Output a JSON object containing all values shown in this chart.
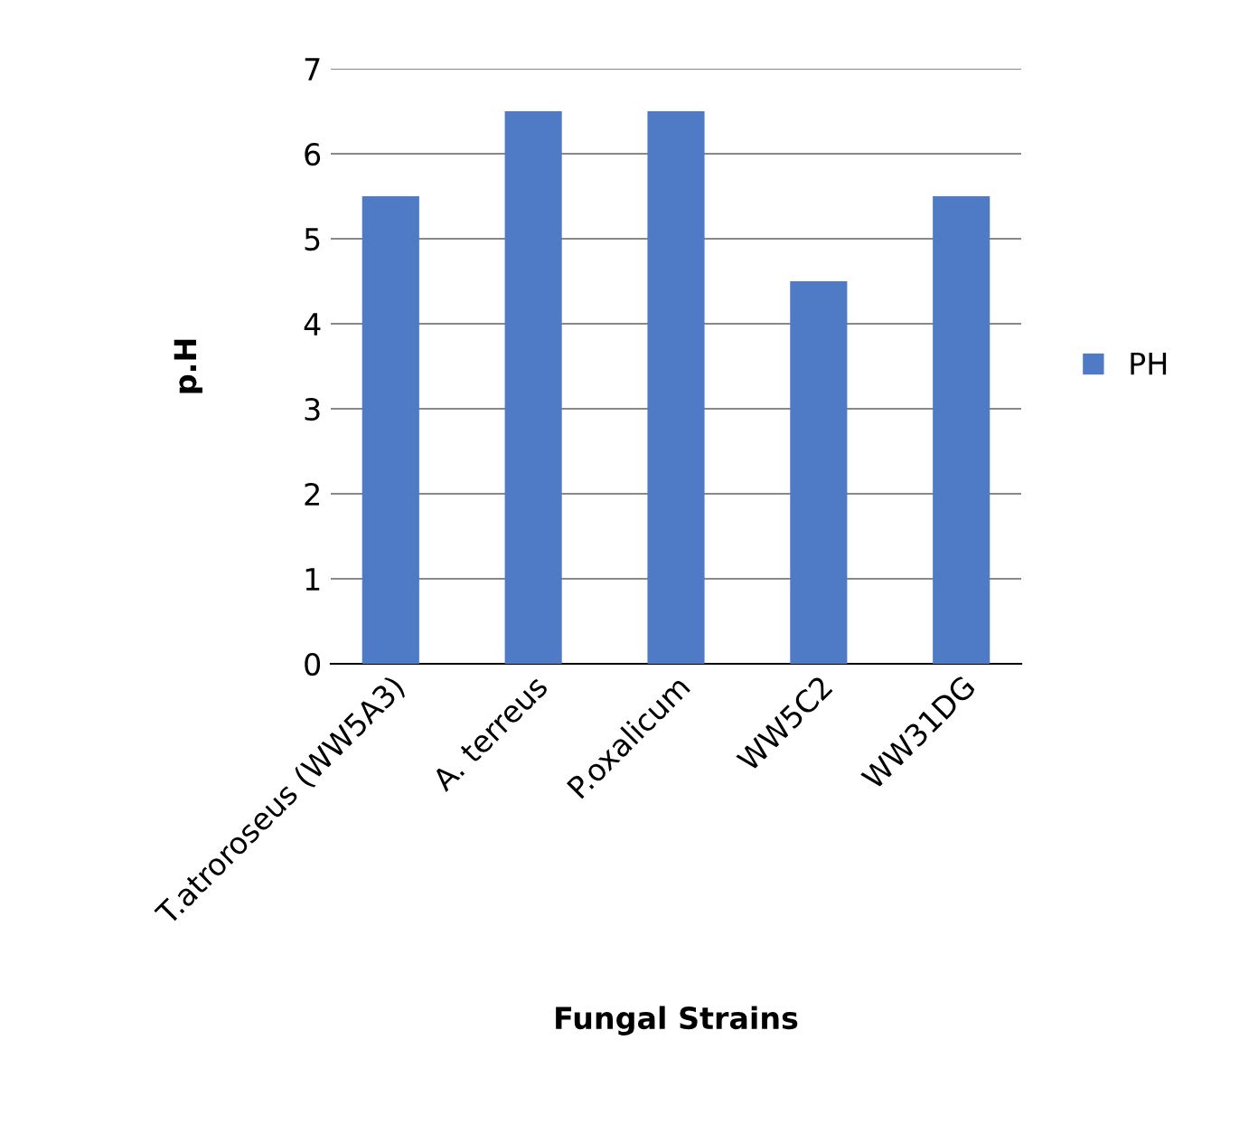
{
  "chart_data": {
    "type": "bar",
    "xlabel": "Fungal Strains",
    "ylabel": "p.H",
    "categories": [
      "T.atroroseus (WW5A3)",
      "A. terreus",
      "P.oxalicum",
      "WW5C2",
      "WW31DG"
    ],
    "series": [
      {
        "name": "PH",
        "color": "#4f7bc6",
        "values": [
          5.5,
          6.5,
          6.5,
          4.5,
          5.5
        ]
      }
    ],
    "ylim": [
      0,
      7
    ],
    "yticks": [
      0,
      1,
      2,
      3,
      4,
      5,
      6,
      7
    ],
    "grid": "y",
    "legend": "right"
  }
}
